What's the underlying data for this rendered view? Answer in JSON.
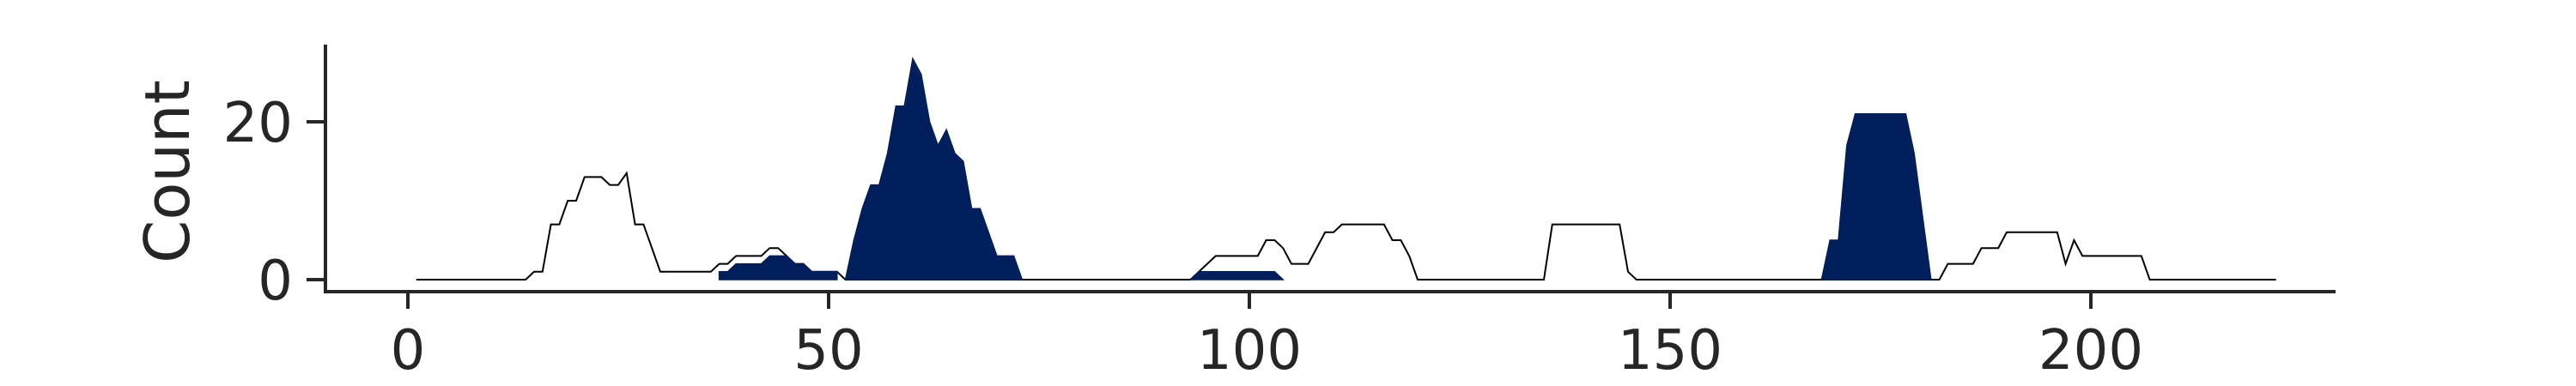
{
  "chart_data": {
    "type": "area",
    "title": "",
    "xlabel": "",
    "ylabel": "Count",
    "xlim": [
      -10,
      233
    ],
    "ylim": [
      -1.5,
      30
    ],
    "xticks": [
      0,
      50,
      100,
      150,
      200
    ],
    "yticks": [
      0,
      20
    ],
    "grid": false,
    "legend": "none",
    "series": [
      {
        "fill": "none",
        "stroke": "#000000",
        "points": [
          [
            1,
            0
          ],
          [
            14,
            0
          ],
          [
            15,
            1
          ],
          [
            16,
            1
          ],
          [
            17,
            7
          ],
          [
            18,
            7
          ],
          [
            19,
            10
          ],
          [
            20,
            10
          ],
          [
            21,
            13
          ],
          [
            23,
            13
          ],
          [
            24,
            12
          ],
          [
            25,
            12
          ],
          [
            26,
            13.5
          ],
          [
            27,
            7
          ],
          [
            28,
            7
          ],
          [
            30,
            1
          ],
          [
            36,
            1
          ],
          [
            37,
            2
          ],
          [
            38,
            2
          ],
          [
            39,
            3
          ],
          [
            42,
            3
          ],
          [
            43,
            4
          ],
          [
            44,
            4
          ],
          [
            45,
            3
          ],
          [
            46,
            2
          ],
          [
            47,
            2
          ],
          [
            48,
            1
          ],
          [
            51,
            1
          ],
          [
            52,
            0
          ],
          [
            93,
            0
          ],
          [
            96,
            3
          ],
          [
            101,
            3
          ],
          [
            102,
            5
          ],
          [
            103,
            5
          ],
          [
            104,
            4
          ],
          [
            105,
            2
          ],
          [
            107,
            2
          ],
          [
            109,
            6
          ],
          [
            110,
            6
          ],
          [
            111,
            7
          ],
          [
            116,
            7
          ],
          [
            117,
            5
          ],
          [
            118,
            5
          ],
          [
            119,
            3
          ],
          [
            120,
            0
          ],
          [
            135,
            0
          ],
          [
            136,
            7
          ],
          [
            144,
            7
          ],
          [
            145,
            1
          ],
          [
            146,
            0
          ],
          [
            182,
            0
          ],
          [
            183,
            2
          ],
          [
            186,
            2
          ],
          [
            187,
            4
          ],
          [
            189,
            4
          ],
          [
            190,
            6
          ],
          [
            196,
            6
          ],
          [
            197,
            2
          ],
          [
            198,
            5
          ],
          [
            199,
            3
          ],
          [
            206,
            3
          ],
          [
            207,
            0
          ],
          [
            222,
            0
          ]
        ]
      },
      {
        "fill": "#001f5c",
        "stroke": "#001f5c",
        "points": [
          [
            37,
            0
          ],
          [
            37,
            1
          ],
          [
            38,
            1
          ],
          [
            39,
            2
          ],
          [
            42,
            2
          ],
          [
            43,
            3
          ],
          [
            45,
            3
          ],
          [
            46,
            2
          ],
          [
            47,
            2
          ],
          [
            48,
            1
          ],
          [
            51,
            1
          ],
          [
            51,
            0
          ]
        ]
      },
      {
        "fill": "#001f5c",
        "stroke": "#001f5c",
        "points": [
          [
            52,
            0
          ],
          [
            53,
            5
          ],
          [
            54,
            9
          ],
          [
            55,
            12
          ],
          [
            56,
            12
          ],
          [
            57,
            16
          ],
          [
            58,
            22
          ],
          [
            59,
            22
          ],
          [
            60,
            28
          ],
          [
            61,
            26
          ],
          [
            62,
            20
          ],
          [
            63,
            17
          ],
          [
            64,
            19
          ],
          [
            65,
            16
          ],
          [
            66,
            15
          ],
          [
            67,
            9
          ],
          [
            68,
            9
          ],
          [
            69,
            6
          ],
          [
            70,
            3
          ],
          [
            71,
            3
          ],
          [
            72,
            3
          ],
          [
            73,
            0
          ]
        ]
      },
      {
        "fill": "#001f5c",
        "stroke": "#001f5c",
        "points": [
          [
            93,
            0
          ],
          [
            94,
            1
          ],
          [
            103,
            1
          ],
          [
            104,
            0
          ]
        ]
      },
      {
        "fill": "#001f5c",
        "stroke": "#001f5c",
        "points": [
          [
            168,
            0
          ],
          [
            169,
            5
          ],
          [
            170,
            5
          ],
          [
            171,
            17
          ],
          [
            172,
            21
          ],
          [
            178,
            21
          ],
          [
            179,
            16
          ],
          [
            181,
            0
          ]
        ]
      }
    ]
  }
}
